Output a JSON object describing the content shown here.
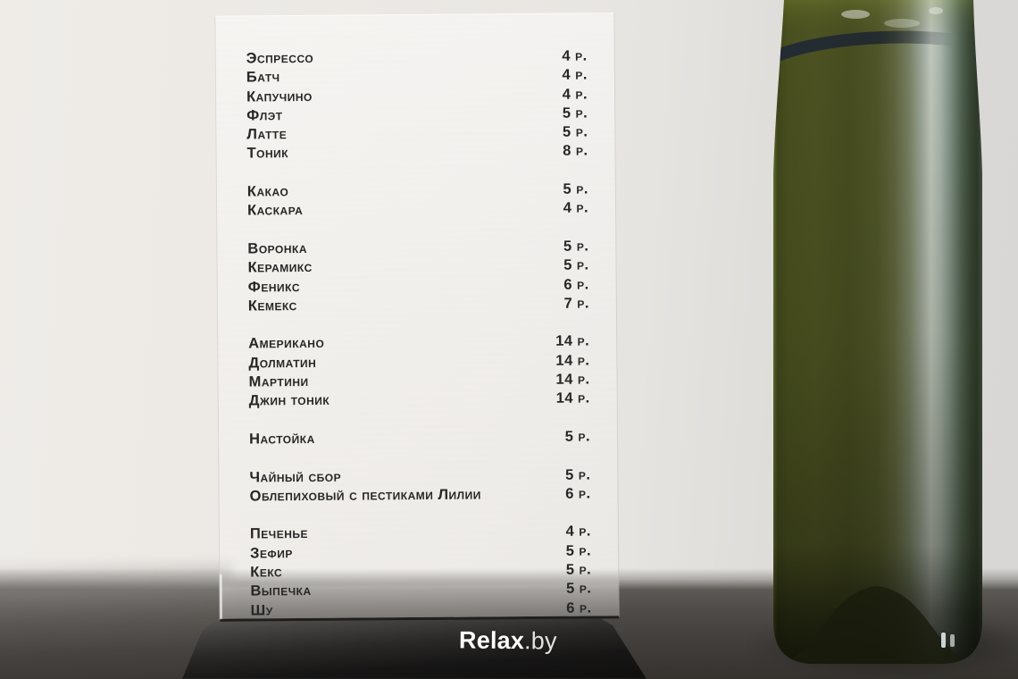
{
  "site_watermark": {
    "bold": "Relax",
    "light": ".by"
  },
  "menu": {
    "groups": [
      {
        "items": [
          {
            "name": "Эспрессо",
            "price": "4 р."
          },
          {
            "name": "Батч",
            "price": "4 р."
          },
          {
            "name": "Капучино",
            "price": "4 р."
          },
          {
            "name": "Флэт",
            "price": "5 р."
          },
          {
            "name": "Латте",
            "price": "5 р."
          },
          {
            "name": "Тоник",
            "price": "8 р."
          }
        ]
      },
      {
        "items": [
          {
            "name": "Какао",
            "price": "5 р."
          },
          {
            "name": "Каскара",
            "price": "4 р."
          }
        ]
      },
      {
        "items": [
          {
            "name": "Воронка",
            "price": "5 р."
          },
          {
            "name": "Керамикс",
            "price": "5 р."
          },
          {
            "name": "Феникс",
            "price": "6 р."
          },
          {
            "name": "Кемекс",
            "price": "7 р."
          }
        ]
      },
      {
        "items": [
          {
            "name": "Американо",
            "price": "14 р."
          },
          {
            "name": "Долматин",
            "price": "14 р."
          },
          {
            "name": "Мартини",
            "price": "14 р."
          },
          {
            "name": "Джин тоник",
            "price": "14 р."
          }
        ]
      },
      {
        "items": [
          {
            "name": "Настойка",
            "price": "5 р."
          }
        ]
      },
      {
        "items": [
          {
            "name": "Чайный сбор",
            "price": "5 р."
          },
          {
            "name": "Облепиховый с пестиками Лилии",
            "price": "6 р."
          }
        ]
      },
      {
        "items": [
          {
            "name": "Печенье",
            "price": "4 р."
          },
          {
            "name": "Зефир",
            "price": "5 р."
          },
          {
            "name": "Кекс",
            "price": "5 р."
          },
          {
            "name": "Выпечка",
            "price": "5 р."
          },
          {
            "name": "Шу",
            "price": "6 р."
          }
        ]
      }
    ]
  },
  "colors": {
    "wall": "#eae7e3",
    "table": "#45423f",
    "stand_base": "#1c1b1a",
    "menu_text": "#262626",
    "bottle_glass_olive": "#4e5222",
    "bottle_highlight": "#d2d8d0",
    "watermark_text": "#fdfdfd"
  }
}
